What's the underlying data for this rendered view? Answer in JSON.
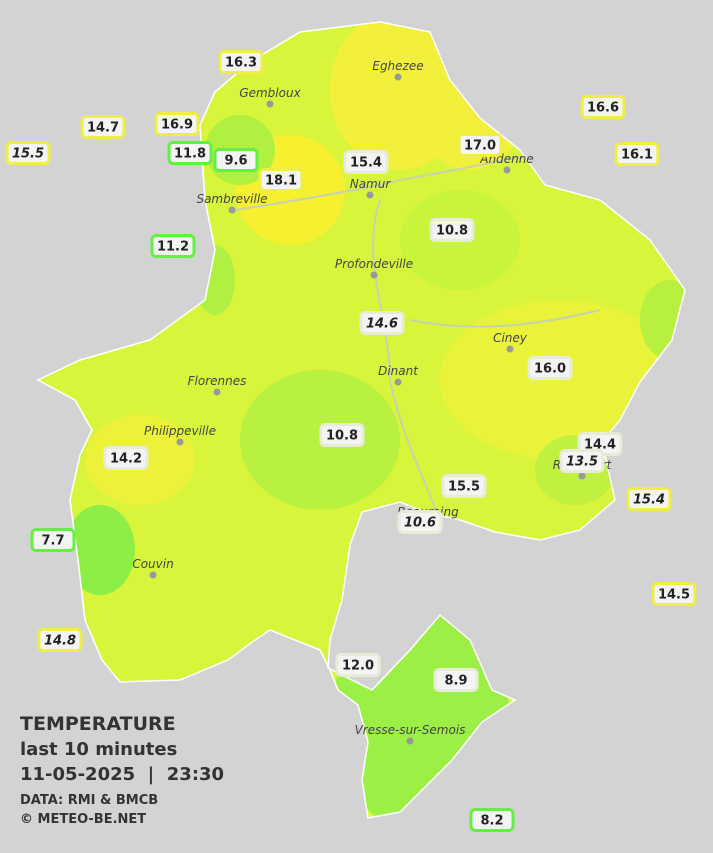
{
  "title": {
    "heading": "TEMPERATURE",
    "subtitle": "last 10 minutes",
    "datetime": "11-05-2025  |  23:30",
    "source": "DATA: RMI & BMCB",
    "copyright": "© METEO-BE.NET"
  },
  "towns": [
    {
      "name": "Eghezee"
    },
    {
      "name": "Gembloux"
    },
    {
      "name": "Sambreville"
    },
    {
      "name": "Namur"
    },
    {
      "name": "Andenne"
    },
    {
      "name": "Profondeville"
    },
    {
      "name": "Ciney"
    },
    {
      "name": "Dinant"
    },
    {
      "name": "Florennes"
    },
    {
      "name": "Philippeville"
    },
    {
      "name": "Beauraing"
    },
    {
      "name": "Rochefort"
    },
    {
      "name": "Couvin"
    },
    {
      "name": "Vresse-sur-Semois"
    }
  ],
  "stations": [
    {
      "value": "16.3",
      "color": "#eeee44",
      "italic": false
    },
    {
      "value": "14.7",
      "color": "#eeee44",
      "italic": false
    },
    {
      "value": "16.9",
      "color": "#eeee44",
      "italic": false
    },
    {
      "value": "15.5",
      "color": "#eeee44",
      "italic": true
    },
    {
      "value": "11.8",
      "color": "#66ee44",
      "italic": false
    },
    {
      "value": "9.6",
      "color": "#66ee44",
      "italic": false
    },
    {
      "value": "18.1",
      "color": "#eeee44",
      "italic": false
    },
    {
      "value": "15.4",
      "color": "#e6ecd8",
      "italic": false
    },
    {
      "value": "17.0",
      "color": "#eeee44",
      "italic": false
    },
    {
      "value": "16.6",
      "color": "#eeee44",
      "italic": false
    },
    {
      "value": "16.1",
      "color": "#eeee44",
      "italic": false
    },
    {
      "value": "11.2",
      "color": "#66ee44",
      "italic": false
    },
    {
      "value": "10.8",
      "color": "#e6ecd8",
      "italic": false
    },
    {
      "value": "14.6",
      "color": "#e6ecd8",
      "italic": true
    },
    {
      "value": "16.0",
      "color": "#e6ecd8",
      "italic": false
    },
    {
      "value": "10.8",
      "color": "#e6ecd8",
      "italic": false
    },
    {
      "value": "14.2",
      "color": "#e6ecd8",
      "italic": false
    },
    {
      "value": "14.4",
      "color": "#e6ecd8",
      "italic": false
    },
    {
      "value": "13.5",
      "color": "#e6ecd8",
      "italic": true
    },
    {
      "value": "15.5",
      "color": "#e6ecd8",
      "italic": false
    },
    {
      "value": "15.4",
      "color": "#eeee44",
      "italic": true
    },
    {
      "value": "7.7",
      "color": "#66ee44",
      "italic": false
    },
    {
      "value": "10.6",
      "color": "#e6ecd8",
      "italic": true
    },
    {
      "value": "14.5",
      "color": "#eeee44",
      "italic": false
    },
    {
      "value": "14.8",
      "color": "#eeee44",
      "italic": true
    },
    {
      "value": "12.0",
      "color": "#e6ecd8",
      "italic": false
    },
    {
      "value": "8.9",
      "color": "#e6ecd8",
      "italic": false
    },
    {
      "value": "8.2",
      "color": "#66ee44",
      "italic": false
    }
  ]
}
